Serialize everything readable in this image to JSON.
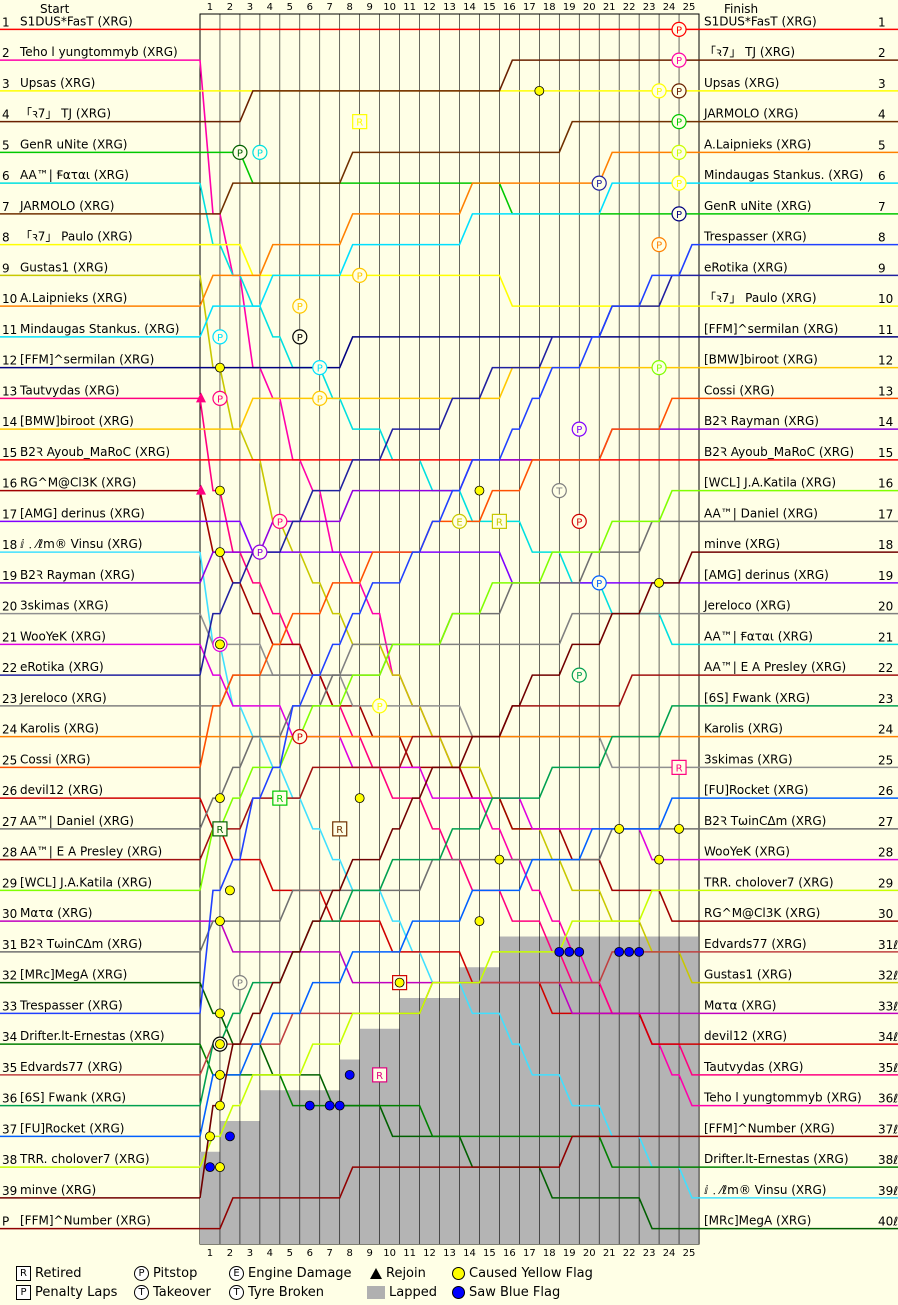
{
  "header": {
    "start": "Start",
    "finish": "Finish"
  },
  "legend": {
    "retired": "Retired",
    "penalty": "Penalty Laps",
    "pitstop": "Pitstop",
    "takeover": "Takeover",
    "engine": "Engine Damage",
    "tyre": "Tyre Broken",
    "rejoin": "Rejoin",
    "lapped": "Lapped",
    "yellow": "Caused Yellow Flag",
    "blue": "Saw Blue Flag",
    "icons": {
      "retired": "R",
      "penalty": "P",
      "pitstop": "P",
      "takeover": "T",
      "engine": "E",
      "tyre": "T"
    }
  },
  "chart_data": {
    "type": "line",
    "laps": [
      1,
      2,
      3,
      4,
      5,
      6,
      7,
      8,
      9,
      10,
      11,
      12,
      13,
      14,
      15,
      16,
      17,
      18,
      19,
      20,
      21,
      22,
      23,
      24,
      25
    ],
    "start_positions": [
      "1",
      "2",
      "3",
      "4",
      "5",
      "6",
      "7",
      "8",
      "9",
      "10",
      "11",
      "12",
      "13",
      "14",
      "15",
      "16",
      "17",
      "18",
      "19",
      "20",
      "21",
      "22",
      "23",
      "24",
      "25",
      "26",
      "27",
      "28",
      "29",
      "30",
      "31",
      "32",
      "33",
      "34",
      "35",
      "36",
      "37",
      "38",
      "39",
      "P"
    ],
    "finish_positions": [
      "1",
      "2",
      "3",
      "4",
      "5",
      "6",
      "7",
      "8",
      "9",
      "10",
      "11",
      "12",
      "13",
      "14",
      "15",
      "16",
      "17",
      "18",
      "19",
      "20",
      "21",
      "22",
      "23",
      "24",
      "25",
      "26",
      "27",
      "28",
      "29",
      "30",
      "31ℓ",
      "32ℓ",
      "33ℓ",
      "34ℓ",
      "35ℓ",
      "36ℓ",
      "37ℓ",
      "38ℓ",
      "39ℓ",
      "40ℓ"
    ],
    "start_grid": [
      "S1DUS*FasT (XRG)",
      "Teho l yungtommyb (XRG)",
      "Upsas (XRG)",
      "「ꝛ7」 TJ (XRG)",
      "GenR uNite (XRG)",
      "AA™| Ꞙαται (XRG)",
      "JARMOLO (XRG)",
      "「ꝛ7」 Paulo (XRG)",
      "Gustas1 (XRG)",
      "A.Laipnieks (XRG)",
      "Mindaugas Stankus. (XRG)",
      "[FFM]^sermilan (XRG)",
      "Tautvydas (XRG)",
      "[BMW]biroot (XRG)",
      "B2Ꝛ Ayoub_MaRoC (XRG)",
      "RG^M@Cl3K (XRG)",
      "[AMG] derinus (XRG)",
      "ⅈ﹒⁄ℓm® Vinsu (XRG)",
      "B2Ꝛ Rayman (XRG)",
      "3skimas (XRG)",
      "WooYeK (XRG)",
      "eRotika (XRG)",
      "Jereloco (XRG)",
      "Karolis (XRG)",
      "Cossi (XRG)",
      "devil12 (XRG)",
      "AA™| Daniel (XRG)",
      "AA™| E A Presley (XRG)",
      "[WCL] J.A.Katila (XRG)",
      "Mατα (XRG)",
      "B2Ꝛ TωinCΔm (XRG)",
      "[MRc]MegA (XRG)",
      "Trespasser (XRG)",
      "Drifter.lt-Ernestas (XRG)",
      "Edvards77 (XRG)",
      "[6S] Fwank (XRG)",
      "[FU]Rocket (XRG)",
      "TRR. cholover7 (XRG)",
      "minve (XRG)",
      "[FFM]^Number (XRG)"
    ],
    "finish_order": [
      "S1DUS*FasT (XRG)",
      "「ꝛ7」 TJ (XRG)",
      "Upsas (XRG)",
      "JARMOLO (XRG)",
      "A.Laipnieks (XRG)",
      "Mindaugas Stankus. (XRG)",
      "GenR uNite (XRG)",
      "Trespasser (XRG)",
      "eRotika (XRG)",
      "「ꝛ7」 Paulo (XRG)",
      "[FFM]^sermilan (XRG)",
      "[BMW]biroot (XRG)",
      "Cossi (XRG)",
      "B2Ꝛ Rayman (XRG)",
      "B2Ꝛ Ayoub_MaRoC (XRG)",
      "[WCL] J.A.Katila (XRG)",
      "AA™| Daniel (XRG)",
      "minve (XRG)",
      "[AMG] derinus (XRG)",
      "Jereloco (XRG)",
      "AA™| Ꞙαται (XRG)",
      "AA™| E A Presley (XRG)",
      "[6S] Fwank (XRG)",
      "Karolis (XRG)",
      "3skimas (XRG)",
      "[FU]Rocket (XRG)",
      "B2Ꝛ TωinCΔm (XRG)",
      "WooYeK (XRG)",
      "TRR. cholover7 (XRG)",
      "RG^M@Cl3K (XRG)",
      "Edvards77 (XRG)",
      "Gustas1 (XRG)",
      "Mατα (XRG)",
      "devil12 (XRG)",
      "Tautvydas (XRG)",
      "Teho l yungtommyb (XRG)",
      "[FFM]^Number (XRG)",
      "Drifter.lt-Ernestas (XRG)",
      "ⅈ﹒⁄ℓm® Vinsu (XRG)",
      "[MRc]MegA (XRG)"
    ],
    "driver_colors": [
      "#ff0000",
      "#ff00aa",
      "#ffff00",
      "#6a2000",
      "#00c800",
      "#00e0e0",
      "#703000",
      "#ffff00",
      "#c8c800",
      "#ff8000",
      "#00e0ff",
      "#000080",
      "#ff0080",
      "#ffc800",
      "#ff0000",
      "#a00000",
      "#8000ff",
      "#40e0ff",
      "#9000e0",
      "#909090",
      "#e000e0",
      "#2020a0",
      "#808080",
      "#ff8000",
      "#ff5000",
      "#d00000",
      "#707070",
      "#a01010",
      "#80ff00",
      "#c000c0",
      "#707070",
      "#006000",
      "#2040ff",
      "#008000",
      "#c04040",
      "#00a050",
      "#0060ff",
      "#c8ff00",
      "#700000",
      "#900000"
    ],
    "lapped_profile": [
      [
        1,
        38
      ],
      [
        2,
        37
      ],
      [
        3,
        37
      ],
      [
        4,
        36
      ],
      [
        5,
        36
      ],
      [
        6,
        36
      ],
      [
        7,
        36
      ],
      [
        8,
        35
      ],
      [
        9,
        34
      ],
      [
        10,
        34
      ],
      [
        11,
        33
      ],
      [
        12,
        33
      ],
      [
        13,
        33
      ],
      [
        14,
        32
      ],
      [
        15,
        32
      ],
      [
        16,
        31
      ],
      [
        17,
        31
      ],
      [
        18,
        31
      ],
      [
        19,
        31
      ],
      [
        20,
        31
      ],
      [
        21,
        31
      ],
      [
        22,
        31
      ],
      [
        23,
        31
      ],
      [
        24,
        31
      ],
      [
        25,
        31
      ]
    ],
    "markers": [
      {
        "type": "pitstop",
        "lap": 24,
        "pos": 1,
        "color": "#ff0000"
      },
      {
        "type": "pitstop",
        "lap": 24,
        "pos": 2,
        "color": "#ff00aa"
      },
      {
        "type": "pitstop",
        "lap": 23,
        "pos": 3,
        "color": "#ffff00"
      },
      {
        "type": "pitstop",
        "lap": 24,
        "pos": 3,
        "color": "#6a2000"
      },
      {
        "type": "pitstop",
        "lap": 24,
        "pos": 4,
        "color": "#00c800"
      },
      {
        "type": "pitstop",
        "lap": 24,
        "pos": 5,
        "color": "#c8ff00"
      },
      {
        "type": "pitstop",
        "lap": 24,
        "pos": 6,
        "color": "#ffff00"
      },
      {
        "type": "pitstop",
        "lap": 24,
        "pos": 7,
        "color": "#000080"
      },
      {
        "type": "pitstop",
        "lap": 23,
        "pos": 8,
        "color": "#ff8000"
      },
      {
        "type": "pitstop",
        "lap": 23,
        "pos": 12,
        "color": "#80ff00"
      },
      {
        "type": "pitstop",
        "lap": 2,
        "pos": 5,
        "color": "#006000"
      },
      {
        "type": "pitstop",
        "lap": 3,
        "pos": 5,
        "color": "#00e0e0"
      },
      {
        "type": "pitstop",
        "lap": 20,
        "pos": 6,
        "color": "#2020a0"
      },
      {
        "type": "pitstop",
        "lap": 8,
        "pos": 9,
        "color": "#ffc800"
      },
      {
        "type": "pitstop",
        "lap": 5,
        "pos": 10,
        "color": "#ffc800"
      },
      {
        "type": "pitstop",
        "lap": 5,
        "pos": 11,
        "color": "#000000"
      },
      {
        "type": "pitstop",
        "lap": 1,
        "pos": 11,
        "color": "#00e0ff"
      },
      {
        "type": "pitstop",
        "lap": 6,
        "pos": 12,
        "color": "#00e0ff"
      },
      {
        "type": "pitstop",
        "lap": 1,
        "pos": 13,
        "color": "#ff0080"
      },
      {
        "type": "pitstop",
        "lap": 6,
        "pos": 13,
        "color": "#ffc800"
      },
      {
        "type": "pitstop",
        "lap": 19,
        "pos": 14,
        "color": "#8000ff"
      },
      {
        "type": "pitstop",
        "lap": 4,
        "pos": 17,
        "color": "#ff0080"
      },
      {
        "type": "pitstop",
        "lap": 19,
        "pos": 17,
        "color": "#d00000"
      },
      {
        "type": "pitstop",
        "lap": 3,
        "pos": 18,
        "color": "#9000e0"
      },
      {
        "type": "pitstop",
        "lap": 20,
        "pos": 19,
        "color": "#0060ff"
      },
      {
        "type": "pitstop",
        "lap": 1,
        "pos": 21,
        "color": "#e000e0"
      },
      {
        "type": "pitstop",
        "lap": 19,
        "pos": 22,
        "color": "#00a050"
      },
      {
        "type": "pitstop",
        "lap": 9,
        "pos": 23,
        "color": "#ffff00"
      },
      {
        "type": "pitstop",
        "lap": 5,
        "pos": 24,
        "color": "#d00000"
      },
      {
        "type": "pitstop",
        "lap": 2,
        "pos": 32,
        "color": "#808080"
      },
      {
        "type": "pitstop",
        "lap": 1,
        "pos": 34,
        "color": "#000000"
      },
      {
        "type": "retired",
        "lap": 8,
        "pos": 4,
        "color": "#ffff00"
      },
      {
        "type": "retired",
        "lap": 15,
        "pos": 17,
        "color": "#c8c800"
      },
      {
        "type": "retired",
        "lap": 4,
        "pos": 26,
        "color": "#00c800"
      },
      {
        "type": "retired",
        "lap": 1,
        "pos": 27,
        "color": "#006000"
      },
      {
        "type": "retired",
        "lap": 7,
        "pos": 27,
        "color": "#703000"
      },
      {
        "type": "retired",
        "lap": 10,
        "pos": 32,
        "color": "#d00000"
      },
      {
        "type": "retired",
        "lap": 9,
        "pos": 35,
        "color": "#e00080"
      },
      {
        "type": "retired",
        "lap": 24,
        "pos": 25,
        "color": "#ff0080"
      },
      {
        "type": "engine",
        "lap": 13,
        "pos": 17,
        "color": "#c8c800"
      },
      {
        "type": "takeover",
        "lap": 18,
        "pos": 16,
        "color": "#808080"
      },
      {
        "type": "yellow",
        "lap": 17,
        "pos": 3
      },
      {
        "type": "yellow",
        "lap": 14,
        "pos": 16
      },
      {
        "type": "yellow",
        "lap": 23,
        "pos": 19
      },
      {
        "type": "yellow",
        "lap": 15,
        "pos": 28
      },
      {
        "type": "yellow",
        "lap": 21,
        "pos": 27
      },
      {
        "type": "yellow",
        "lap": 23,
        "pos": 28
      },
      {
        "type": "yellow",
        "lap": 24,
        "pos": 27
      },
      {
        "type": "yellow",
        "lap": 14,
        "pos": 30
      },
      {
        "type": "yellow",
        "lap": 10,
        "pos": 32
      },
      {
        "type": "yellow",
        "lap": 1,
        "pos": 12
      },
      {
        "type": "yellow",
        "lap": 1,
        "pos": 16
      },
      {
        "type": "yellow",
        "lap": 1,
        "pos": 18
      },
      {
        "type": "yellow",
        "lap": 1,
        "pos": 21
      },
      {
        "type": "yellow",
        "lap": 1,
        "pos": 26
      },
      {
        "type": "yellow",
        "lap": 1,
        "pos": 30
      },
      {
        "type": "yellow",
        "lap": 1,
        "pos": 33
      },
      {
        "type": "yellow",
        "lap": 1,
        "pos": 34
      },
      {
        "type": "yellow",
        "lap": 1,
        "pos": 35
      },
      {
        "type": "yellow",
        "lap": 1,
        "pos": 36
      },
      {
        "type": "yellow",
        "lap": 1,
        "pos": 38
      },
      {
        "type": "yellow",
        "lap": 0.5,
        "pos": 37
      },
      {
        "type": "yellow",
        "lap": 1.5,
        "pos": 29
      },
      {
        "type": "yellow",
        "lap": 8,
        "pos": 26
      },
      {
        "type": "blue",
        "lap": 1.5,
        "pos": 37
      },
      {
        "type": "blue",
        "lap": 0.5,
        "pos": 38
      },
      {
        "type": "blue",
        "lap": 5.5,
        "pos": 36
      },
      {
        "type": "blue",
        "lap": 6.5,
        "pos": 36
      },
      {
        "type": "blue",
        "lap": 7,
        "pos": 36
      },
      {
        "type": "blue",
        "lap": 7.5,
        "pos": 35
      },
      {
        "type": "blue",
        "lap": 18,
        "pos": 31
      },
      {
        "type": "blue",
        "lap": 18.5,
        "pos": 31
      },
      {
        "type": "blue",
        "lap": 19,
        "pos": 31
      },
      {
        "type": "blue",
        "lap": 21,
        "pos": 31
      },
      {
        "type": "blue",
        "lap": 21.5,
        "pos": 31
      },
      {
        "type": "blue",
        "lap": 22,
        "pos": 31
      },
      {
        "type": "rejoin",
        "lap": 0,
        "pos": 13
      },
      {
        "type": "rejoin",
        "lap": 0,
        "pos": 16
      }
    ]
  }
}
